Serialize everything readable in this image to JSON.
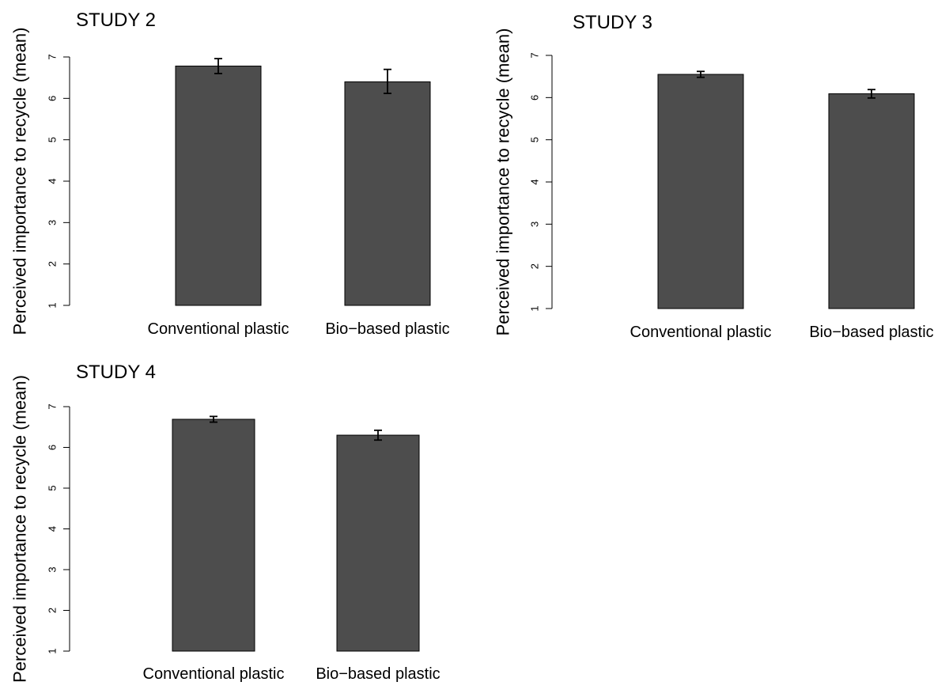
{
  "chart_data": [
    {
      "type": "bar",
      "title": "STUDY 2",
      "ylabel": "Perceived importance to recycle (mean)",
      "xlabel": "",
      "categories": [
        "Conventional plastic",
        "Bio−based plastic"
      ],
      "values": [
        6.78,
        6.4
      ],
      "error_low": [
        6.6,
        6.12
      ],
      "error_high": [
        6.96,
        6.7
      ],
      "ylim": [
        1,
        7
      ],
      "yticks": [
        "1",
        "2",
        "3",
        "4",
        "5",
        "6",
        "7"
      ],
      "bar_color": "#4d4d4d",
      "grid": false
    },
    {
      "type": "bar",
      "title": "STUDY 3",
      "ylabel": "Perceived importance to recycle (mean)",
      "xlabel": "",
      "categories": [
        "Conventional plastic",
        "Bio−based plastic"
      ],
      "values": [
        6.55,
        6.09
      ],
      "error_low": [
        6.48,
        5.99
      ],
      "error_high": [
        6.62,
        6.19
      ],
      "ylim": [
        1,
        7
      ],
      "yticks": [
        "1",
        "2",
        "3",
        "4",
        "5",
        "6",
        "7"
      ],
      "bar_color": "#4d4d4d",
      "grid": false
    },
    {
      "type": "bar",
      "title": "STUDY 4",
      "ylabel": "Perceived importance to recycle (mean)",
      "xlabel": "",
      "categories": [
        "Conventional plastic",
        "Bio−based plastic"
      ],
      "values": [
        6.69,
        6.3
      ],
      "error_low": [
        6.62,
        6.18
      ],
      "error_high": [
        6.76,
        6.42
      ],
      "ylim": [
        1,
        7
      ],
      "yticks": [
        "1",
        "2",
        "3",
        "4",
        "5",
        "6",
        "7"
      ],
      "bar_color": "#4d4d4d",
      "grid": false
    }
  ]
}
